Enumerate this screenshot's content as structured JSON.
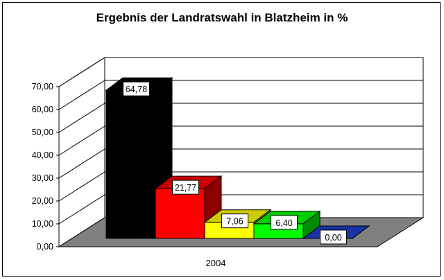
{
  "chart_data": {
    "type": "bar",
    "title": "Ergebnis der Landratswahl in Blatzheim in %",
    "xlabel": "",
    "ylabel": "",
    "categories": [
      "2004"
    ],
    "series": [
      {
        "values": [
          64.78
        ],
        "color": "#000000",
        "label": "64,78"
      },
      {
        "values": [
          21.77
        ],
        "color": "#ff0000",
        "label": "21,77"
      },
      {
        "values": [
          7.06
        ],
        "color": "#ffff00",
        "label": "7,06"
      },
      {
        "values": [
          6.4
        ],
        "color": "#00ff00",
        "label": "6,40"
      },
      {
        "values": [
          0.0
        ],
        "color": "#1f3fcf",
        "label": "0,00"
      }
    ],
    "y_ticks": [
      "0,00",
      "10,00",
      "20,00",
      "30,00",
      "40,00",
      "50,00",
      "60,00",
      "70,00"
    ],
    "ylim": [
      0,
      70
    ],
    "grid": true,
    "legend": "none",
    "style": "3d-bar"
  }
}
